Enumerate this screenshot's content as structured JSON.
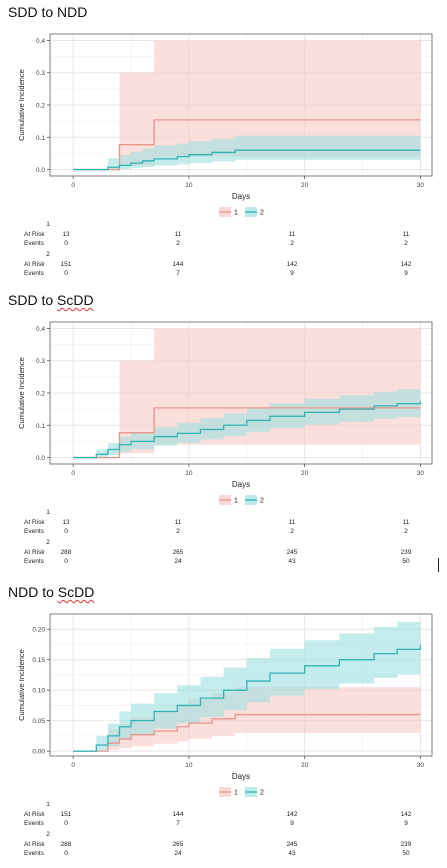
{
  "sections": [
    {
      "title_plain": "SDD to ",
      "title_underlined": "NDD",
      "chart_data": {
        "type": "line",
        "subtype": "cumulative incidence step curves with shaded confidence bands",
        "xlabel": "Days",
        "ylabel": "Cumulative Incidence",
        "xlim": [
          -2,
          31
        ],
        "ylim": [
          -0.02,
          0.42
        ],
        "x_ticks": [
          "0",
          "10",
          "20",
          "30"
        ],
        "y_ticks": [
          "0.0",
          "0.1",
          "0.2",
          "0.3",
          "0.4"
        ],
        "y_tick_values": [
          0,
          0.1,
          0.2,
          0.3,
          0.4
        ],
        "grid": true,
        "legend_position": "bottom-center",
        "series": [
          {
            "name": "1",
            "color": "#e8958b",
            "fill": "#f9c9c4",
            "steps": [
              [
                0,
                0
              ],
              [
                4,
                0.077
              ],
              [
                7,
                0.154
              ],
              [
                30,
                0.154
              ]
            ],
            "lower": [
              [
                0,
                0
              ],
              [
                4,
                0.013
              ],
              [
                7,
                0.04
              ],
              [
                30,
                0.04
              ]
            ],
            "upper": [
              [
                0,
                0
              ],
              [
                4,
                0.3
              ],
              [
                7,
                0.4
              ],
              [
                30,
                0.4
              ]
            ]
          },
          {
            "name": "2",
            "color": "#2fb3b3",
            "fill": "#9fdfe0",
            "steps": [
              [
                0,
                0
              ],
              [
                3,
                0.007
              ],
              [
                4,
                0.013
              ],
              [
                5,
                0.02
              ],
              [
                6,
                0.027
              ],
              [
                7,
                0.033
              ],
              [
                9,
                0.04
              ],
              [
                10,
                0.046
              ],
              [
                12,
                0.053
              ],
              [
                14,
                0.06
              ],
              [
                30,
                0.06
              ]
            ],
            "lower": [
              [
                0,
                0
              ],
              [
                3,
                0
              ],
              [
                4,
                0.002
              ],
              [
                5,
                0.005
              ],
              [
                6,
                0.008
              ],
              [
                7,
                0.012
              ],
              [
                9,
                0.016
              ],
              [
                10,
                0.02
              ],
              [
                12,
                0.025
              ],
              [
                14,
                0.03
              ],
              [
                30,
                0.03
              ]
            ],
            "upper": [
              [
                0,
                0
              ],
              [
                3,
                0.035
              ],
              [
                4,
                0.045
              ],
              [
                5,
                0.055
              ],
              [
                6,
                0.065
              ],
              [
                7,
                0.075
              ],
              [
                9,
                0.08
              ],
              [
                10,
                0.088
              ],
              [
                12,
                0.095
              ],
              [
                14,
                0.105
              ],
              [
                30,
                0.105
              ]
            ]
          }
        ]
      },
      "risk_table": {
        "times": [
          "0",
          "10",
          "20",
          "30"
        ],
        "groups": [
          {
            "group": "1",
            "at_risk": [
              "13",
              "11",
              "11",
              "11"
            ],
            "events": [
              "0",
              "2",
              "2",
              "2"
            ]
          },
          {
            "group": "2",
            "at_risk": [
              "151",
              "144",
              "142",
              "142"
            ],
            "events": [
              "0",
              "7",
              "9",
              "9"
            ]
          }
        ]
      }
    },
    {
      "title_plain": "SDD to ",
      "title_underlined": "ScDD",
      "chart_data": {
        "type": "line",
        "subtype": "cumulative incidence step curves with shaded confidence bands",
        "xlabel": "Days",
        "ylabel": "Cumulative Incidence",
        "xlim": [
          -2,
          31
        ],
        "ylim": [
          -0.02,
          0.42
        ],
        "x_ticks": [
          "0",
          "10",
          "20",
          "30"
        ],
        "y_ticks": [
          "0.0",
          "0.1",
          "0.2",
          "0.3",
          "0.4"
        ],
        "y_tick_values": [
          0,
          0.1,
          0.2,
          0.3,
          0.4
        ],
        "grid": true,
        "legend_position": "bottom-center",
        "series": [
          {
            "name": "1",
            "color": "#e8958b",
            "fill": "#f9c9c4",
            "steps": [
              [
                0,
                0
              ],
              [
                4,
                0.077
              ],
              [
                7,
                0.154
              ],
              [
                30,
                0.154
              ]
            ],
            "lower": [
              [
                0,
                0
              ],
              [
                4,
                0.013
              ],
              [
                7,
                0.04
              ],
              [
                30,
                0.04
              ]
            ],
            "upper": [
              [
                0,
                0
              ],
              [
                4,
                0.3
              ],
              [
                7,
                0.4
              ],
              [
                30,
                0.4
              ]
            ]
          },
          {
            "name": "2",
            "color": "#2fb3b3",
            "fill": "#9fdfe0",
            "steps": [
              [
                0,
                0
              ],
              [
                2,
                0.01
              ],
              [
                3,
                0.025
              ],
              [
                4,
                0.04
              ],
              [
                5,
                0.05
              ],
              [
                7,
                0.065
              ],
              [
                9,
                0.075
              ],
              [
                11,
                0.087
              ],
              [
                13,
                0.1
              ],
              [
                15,
                0.115
              ],
              [
                17,
                0.128
              ],
              [
                20,
                0.14
              ],
              [
                23,
                0.15
              ],
              [
                26,
                0.16
              ],
              [
                28,
                0.167
              ],
              [
                30,
                0.174
              ]
            ],
            "lower": [
              [
                0,
                0
              ],
              [
                2,
                0
              ],
              [
                3,
                0.008
              ],
              [
                4,
                0.018
              ],
              [
                5,
                0.026
              ],
              [
                7,
                0.037
              ],
              [
                9,
                0.046
              ],
              [
                11,
                0.056
              ],
              [
                13,
                0.067
              ],
              [
                15,
                0.08
              ],
              [
                17,
                0.091
              ],
              [
                20,
                0.102
              ],
              [
                23,
                0.111
              ],
              [
                26,
                0.12
              ],
              [
                28,
                0.126
              ],
              [
                30,
                0.132
              ]
            ],
            "upper": [
              [
                0,
                0
              ],
              [
                2,
                0.025
              ],
              [
                3,
                0.045
              ],
              [
                4,
                0.065
              ],
              [
                5,
                0.078
              ],
              [
                7,
                0.095
              ],
              [
                9,
                0.108
              ],
              [
                11,
                0.122
              ],
              [
                13,
                0.137
              ],
              [
                15,
                0.153
              ],
              [
                17,
                0.168
              ],
              [
                20,
                0.182
              ],
              [
                23,
                0.193
              ],
              [
                26,
                0.204
              ],
              [
                28,
                0.212
              ],
              [
                30,
                0.22
              ]
            ]
          }
        ]
      },
      "risk_table": {
        "times": [
          "0",
          "10",
          "20",
          "30"
        ],
        "groups": [
          {
            "group": "1",
            "at_risk": [
              "13",
              "11",
              "11",
              "11"
            ],
            "events": [
              "0",
              "2",
              "2",
              "2"
            ]
          },
          {
            "group": "2",
            "at_risk": [
              "288",
              "265",
              "245",
              "239"
            ],
            "events": [
              "0",
              "24",
              "43",
              "50"
            ]
          }
        ]
      }
    },
    {
      "title_plain": "NDD to ",
      "title_underlined": "ScDD",
      "chart_data": {
        "type": "line",
        "subtype": "cumulative incidence step curves with shaded confidence bands",
        "xlabel": "Days",
        "ylabel": "Cumulative Incidence",
        "xlim": [
          -2,
          31
        ],
        "ylim": [
          -0.008,
          0.225
        ],
        "x_ticks": [
          "0",
          "10",
          "20",
          "30"
        ],
        "y_ticks": [
          "0.00",
          "0.05",
          "0.10",
          "0.15",
          "0.20"
        ],
        "y_tick_values": [
          0,
          0.05,
          0.1,
          0.15,
          0.2
        ],
        "grid": true,
        "legend_position": "bottom-center",
        "series": [
          {
            "name": "1",
            "color": "#e8958b",
            "fill": "#f9c9c4",
            "steps": [
              [
                0,
                0
              ],
              [
                3,
                0.013
              ],
              [
                4,
                0.02
              ],
              [
                5,
                0.027
              ],
              [
                7,
                0.033
              ],
              [
                9,
                0.04
              ],
              [
                10,
                0.046
              ],
              [
                12,
                0.053
              ],
              [
                14,
                0.06
              ],
              [
                30,
                0.06
              ]
            ],
            "lower": [
              [
                0,
                0
              ],
              [
                3,
                0.002
              ],
              [
                4,
                0.005
              ],
              [
                5,
                0.008
              ],
              [
                7,
                0.012
              ],
              [
                9,
                0.016
              ],
              [
                10,
                0.02
              ],
              [
                12,
                0.025
              ],
              [
                14,
                0.03
              ],
              [
                30,
                0.03
              ]
            ],
            "upper": [
              [
                0,
                0
              ],
              [
                3,
                0.035
              ],
              [
                4,
                0.045
              ],
              [
                5,
                0.055
              ],
              [
                7,
                0.065
              ],
              [
                9,
                0.075
              ],
              [
                10,
                0.085
              ],
              [
                12,
                0.095
              ],
              [
                14,
                0.105
              ],
              [
                30,
                0.105
              ]
            ]
          },
          {
            "name": "2",
            "color": "#2fb3b3",
            "fill": "#9fdfe0",
            "steps": [
              [
                0,
                0
              ],
              [
                2,
                0.01
              ],
              [
                3,
                0.025
              ],
              [
                4,
                0.04
              ],
              [
                5,
                0.05
              ],
              [
                7,
                0.065
              ],
              [
                9,
                0.075
              ],
              [
                11,
                0.087
              ],
              [
                13,
                0.1
              ],
              [
                15,
                0.115
              ],
              [
                17,
                0.128
              ],
              [
                20,
                0.14
              ],
              [
                23,
                0.15
              ],
              [
                26,
                0.16
              ],
              [
                28,
                0.167
              ],
              [
                30,
                0.174
              ]
            ],
            "lower": [
              [
                0,
                0
              ],
              [
                2,
                0
              ],
              [
                3,
                0.008
              ],
              [
                4,
                0.018
              ],
              [
                5,
                0.026
              ],
              [
                7,
                0.037
              ],
              [
                9,
                0.046
              ],
              [
                11,
                0.056
              ],
              [
                13,
                0.067
              ],
              [
                15,
                0.08
              ],
              [
                17,
                0.091
              ],
              [
                20,
                0.102
              ],
              [
                23,
                0.111
              ],
              [
                26,
                0.12
              ],
              [
                28,
                0.126
              ],
              [
                30,
                0.132
              ]
            ],
            "upper": [
              [
                0,
                0
              ],
              [
                2,
                0.025
              ],
              [
                3,
                0.045
              ],
              [
                4,
                0.065
              ],
              [
                5,
                0.078
              ],
              [
                7,
                0.095
              ],
              [
                9,
                0.108
              ],
              [
                11,
                0.122
              ],
              [
                13,
                0.137
              ],
              [
                15,
                0.153
              ],
              [
                17,
                0.168
              ],
              [
                20,
                0.182
              ],
              [
                23,
                0.193
              ],
              [
                26,
                0.204
              ],
              [
                28,
                0.212
              ],
              [
                30,
                0.22
              ]
            ]
          }
        ]
      },
      "risk_table": {
        "times": [
          "0",
          "10",
          "20",
          "30"
        ],
        "groups": [
          {
            "group": "1",
            "at_risk": [
              "151",
              "144",
              "142",
              "142"
            ],
            "events": [
              "0",
              "7",
              "9",
              "9"
            ]
          },
          {
            "group": "2",
            "at_risk": [
              "288",
              "265",
              "245",
              "239"
            ],
            "events": [
              "0",
              "24",
              "43",
              "50"
            ]
          }
        ]
      }
    }
  ],
  "risk_table_labels": {
    "at_risk": "At Risk",
    "events": "Events"
  },
  "theme": {
    "panel_border": "#7f7f7f",
    "grid_major": "#e6e6e6",
    "grid_minor": "#f3f3f3",
    "text": "#222222"
  }
}
